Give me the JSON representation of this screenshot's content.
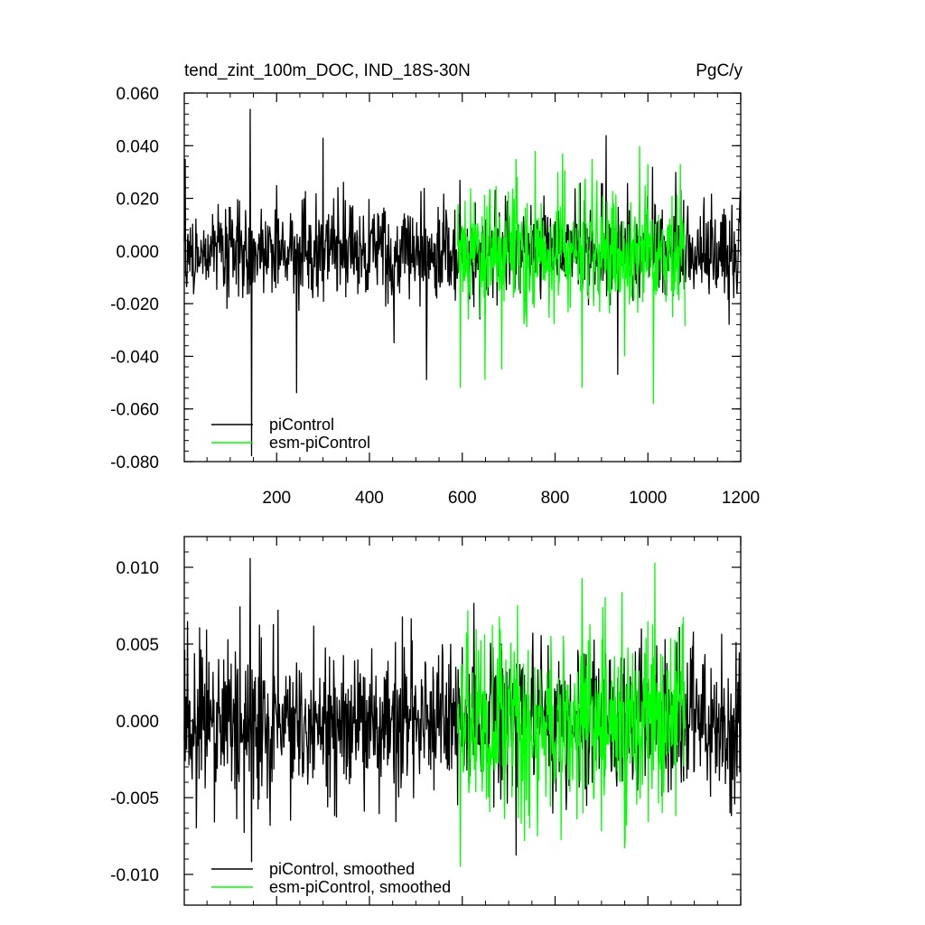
{
  "chart_data": [
    {
      "type": "line",
      "title": "tend_zint_100m_DOC, IND_18S-30N",
      "units": "PgC/y",
      "xlim": [
        1,
        1200
      ],
      "ylim": [
        -0.08,
        0.06
      ],
      "xticks": [
        200,
        400,
        600,
        800,
        1000,
        1200
      ],
      "xtick_labels": [
        "200",
        "400",
        "600",
        "800",
        "1000",
        "1200"
      ],
      "yticks": [
        -0.08,
        -0.06,
        -0.04,
        -0.02,
        0.0,
        0.02,
        0.04,
        0.06
      ],
      "ytick_labels": [
        "-0.080",
        "-0.060",
        "-0.040",
        "-0.020",
        "0.000",
        "0.020",
        "0.040",
        "0.060"
      ],
      "legend_placement": "bottom-left",
      "series": [
        {
          "name": "piControl",
          "color": "#000000",
          "x_range": [
            1,
            1200
          ],
          "noise_sd": 0.0105,
          "spikes": [
            [
              3,
              0.035
            ],
            [
              143,
              0.054
            ],
            [
              146,
              -0.078
            ],
            [
              200,
              0.025
            ],
            [
              243,
              -0.054
            ],
            [
              300,
              0.043
            ],
            [
              453,
              -0.035
            ],
            [
              523,
              -0.049
            ],
            [
              595,
              0.027
            ],
            [
              910,
              0.044
            ],
            [
              935,
              -0.047
            ],
            [
              1010,
              0.032
            ],
            [
              1060,
              0.03
            ],
            [
              1175,
              -0.028
            ]
          ]
        },
        {
          "name": "esm-piControl",
          "color": "#00ff00",
          "x_range": [
            590,
            1080
          ],
          "noise_sd": 0.0142,
          "spikes": [
            [
              596,
              -0.052
            ],
            [
              649,
              -0.049
            ],
            [
              685,
              -0.045
            ],
            [
              757,
              0.038
            ],
            [
              816,
              0.037
            ],
            [
              858,
              -0.052
            ],
            [
              880,
              0.035
            ],
            [
              950,
              -0.04
            ],
            [
              1000,
              0.033
            ],
            [
              1012,
              -0.058
            ],
            [
              1070,
              0.033
            ]
          ]
        }
      ]
    },
    {
      "type": "line",
      "xlim": [
        1,
        1200
      ],
      "ylim": [
        -0.012,
        0.012
      ],
      "xticks": [
        200,
        400,
        600,
        800,
        1000,
        1200
      ],
      "yticks": [
        -0.01,
        -0.005,
        0.0,
        0.005,
        0.01
      ],
      "ytick_labels": [
        "-0.010",
        "-0.005",
        "0.000",
        "0.005",
        "0.010"
      ],
      "legend_placement": "bottom-left",
      "series": [
        {
          "name": "piControl, smoothed",
          "color": "#000000",
          "x_range": [
            1,
            1200
          ],
          "noise_sd": 0.0028,
          "spikes": [
            [
              8,
              0.0065
            ],
            [
              27,
              -0.007
            ],
            [
              130,
              -0.0073
            ],
            [
              143,
              0.0106
            ],
            [
              146,
              -0.0092
            ],
            [
              193,
              0.0063
            ],
            [
              230,
              -0.0065
            ],
            [
              280,
              0.0062
            ],
            [
              325,
              -0.0062
            ],
            [
              471,
              0.0068
            ],
            [
              590,
              -0.0055
            ],
            [
              1180,
              -0.0062
            ]
          ]
        },
        {
          "name": "esm-piControl, smoothed",
          "color": "#00ff00",
          "x_range": [
            590,
            1080
          ],
          "noise_sd": 0.0032,
          "spikes": [
            [
              596,
              -0.0095
            ],
            [
              612,
              0.0072
            ],
            [
              680,
              0.0068
            ],
            [
              745,
              -0.007
            ],
            [
              858,
              0.0093
            ],
            [
              875,
              0.0063
            ],
            [
              900,
              -0.0072
            ],
            [
              950,
              -0.0083
            ],
            [
              1000,
              0.0065
            ],
            [
              1015,
              0.0103
            ],
            [
              1060,
              -0.0062
            ]
          ]
        }
      ]
    }
  ]
}
